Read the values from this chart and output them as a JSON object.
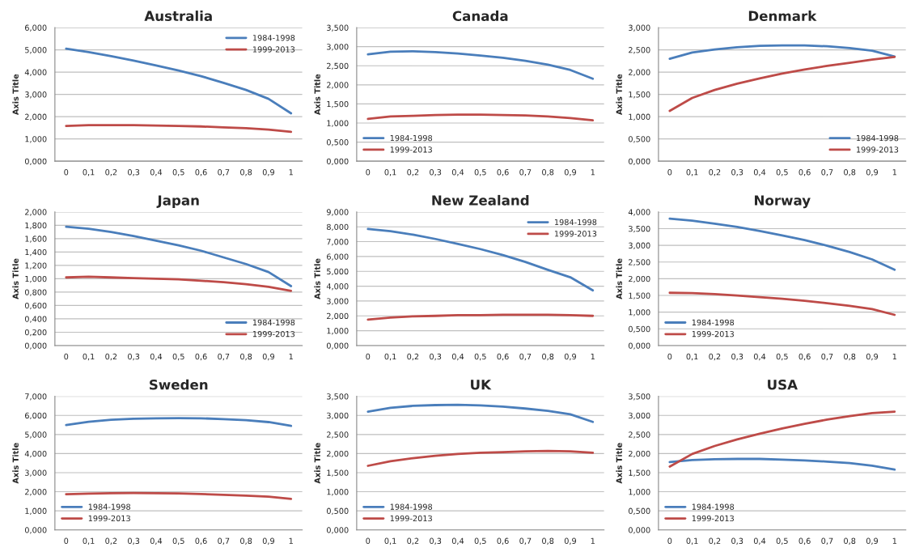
{
  "chart_data": [
    {
      "type": "line",
      "title": "Australia",
      "ylabel": "Axis Title",
      "categories": [
        "0",
        "0,1",
        "0,2",
        "0,3",
        "0,4",
        "0,5",
        "0,6",
        "0,7",
        "0,8",
        "0,9",
        "1"
      ],
      "ylim": [
        0,
        6
      ],
      "yticks": [
        {
          "value": 0,
          "label": "0,000"
        },
        {
          "value": 1,
          "label": "1,000"
        },
        {
          "value": 2,
          "label": "2,000"
        },
        {
          "value": 3,
          "label": "3,000"
        },
        {
          "value": 4,
          "label": "4,000"
        },
        {
          "value": 5,
          "label": "5,000"
        },
        {
          "value": 6,
          "label": "6,000"
        }
      ],
      "grid": "y",
      "legend": "top right",
      "series": [
        {
          "name": "1984-1998",
          "color": "#4a7ebb",
          "values": [
            5.05,
            4.9,
            4.72,
            4.52,
            4.3,
            4.07,
            3.82,
            3.52,
            3.2,
            2.8,
            2.15
          ]
        },
        {
          "name": "1999-2013",
          "color": "#be4b48",
          "values": [
            1.58,
            1.62,
            1.62,
            1.62,
            1.6,
            1.58,
            1.56,
            1.52,
            1.48,
            1.42,
            1.32
          ]
        }
      ]
    },
    {
      "type": "line",
      "title": "Canada",
      "ylabel": "Axis Title",
      "categories": [
        "0",
        "0,1",
        "0,2",
        "0,3",
        "0,4",
        "0,5",
        "0,6",
        "0,7",
        "0,8",
        "0,9",
        "1"
      ],
      "ylim": [
        0,
        3.5
      ],
      "yticks": [
        {
          "value": 0,
          "label": "0,000"
        },
        {
          "value": 0.5,
          "label": "0,500"
        },
        {
          "value": 1,
          "label": "1,000"
        },
        {
          "value": 1.5,
          "label": "1,500"
        },
        {
          "value": 2,
          "label": "2,000"
        },
        {
          "value": 2.5,
          "label": "2,500"
        },
        {
          "value": 3,
          "label": "3,000"
        },
        {
          "value": 3.5,
          "label": "3,500"
        }
      ],
      "grid": "y",
      "legend": "bottom left",
      "series": [
        {
          "name": "1984-1998",
          "color": "#4a7ebb",
          "values": [
            2.8,
            2.87,
            2.88,
            2.86,
            2.82,
            2.77,
            2.71,
            2.63,
            2.53,
            2.39,
            2.16
          ]
        },
        {
          "name": "1999-2013",
          "color": "#be4b48",
          "values": [
            1.11,
            1.17,
            1.19,
            1.21,
            1.22,
            1.22,
            1.21,
            1.2,
            1.17,
            1.13,
            1.07
          ]
        }
      ]
    },
    {
      "type": "line",
      "title": "Denmark",
      "ylabel": "Axis Title",
      "categories": [
        "0",
        "0,1",
        "0,2",
        "0,3",
        "0,4",
        "0,5",
        "0,6",
        "0,7",
        "0,8",
        "0,9",
        "1"
      ],
      "ylim": [
        0,
        3
      ],
      "yticks": [
        {
          "value": 0,
          "label": "0,000"
        },
        {
          "value": 0.5,
          "label": "0,500"
        },
        {
          "value": 1,
          "label": "1,000"
        },
        {
          "value": 1.5,
          "label": "1,500"
        },
        {
          "value": 2,
          "label": "2,000"
        },
        {
          "value": 2.5,
          "label": "2,500"
        },
        {
          "value": 3,
          "label": "3,000"
        }
      ],
      "grid": "y",
      "legend": "bottom right",
      "series": [
        {
          "name": "1984-1998",
          "color": "#4a7ebb",
          "values": [
            2.3,
            2.44,
            2.51,
            2.56,
            2.59,
            2.6,
            2.6,
            2.58,
            2.54,
            2.48,
            2.35
          ]
        },
        {
          "name": "1999-2013",
          "color": "#be4b48",
          "values": [
            1.13,
            1.42,
            1.6,
            1.74,
            1.86,
            1.97,
            2.06,
            2.14,
            2.21,
            2.28,
            2.34
          ]
        }
      ]
    },
    {
      "type": "line",
      "title": "Japan",
      "ylabel": "Axis Title",
      "categories": [
        "0",
        "0,1",
        "0,2",
        "0,3",
        "0,4",
        "0,5",
        "0,6",
        "0,7",
        "0,8",
        "0,9",
        "1"
      ],
      "ylim": [
        0,
        2
      ],
      "yticks": [
        {
          "value": 0,
          "label": "0,000"
        },
        {
          "value": 0.2,
          "label": "0,200"
        },
        {
          "value": 0.4,
          "label": "0,400"
        },
        {
          "value": 0.6,
          "label": "0,600"
        },
        {
          "value": 0.8,
          "label": "0,800"
        },
        {
          "value": 1,
          "label": "1,000"
        },
        {
          "value": 1.2,
          "label": "1,200"
        },
        {
          "value": 1.4,
          "label": "1,400"
        },
        {
          "value": 1.6,
          "label": "1,600"
        },
        {
          "value": 1.8,
          "label": "1,800"
        },
        {
          "value": 2,
          "label": "2,000"
        }
      ],
      "grid": "y",
      "legend": "bottom right",
      "series": [
        {
          "name": "1984-1998",
          "color": "#4a7ebb",
          "values": [
            1.78,
            1.75,
            1.7,
            1.64,
            1.57,
            1.5,
            1.42,
            1.32,
            1.22,
            1.1,
            0.89
          ]
        },
        {
          "name": "1999-2013",
          "color": "#be4b48",
          "values": [
            1.02,
            1.03,
            1.02,
            1.01,
            1.0,
            0.99,
            0.97,
            0.95,
            0.92,
            0.88,
            0.82
          ]
        }
      ]
    },
    {
      "type": "line",
      "title": "New Zealand",
      "ylabel": "Axis Title",
      "categories": [
        "0",
        "0,1",
        "0,2",
        "0,3",
        "0,4",
        "0,5",
        "0,6",
        "0,7",
        "0,8",
        "0,9",
        "1"
      ],
      "ylim": [
        0,
        9
      ],
      "yticks": [
        {
          "value": 0,
          "label": "0,000"
        },
        {
          "value": 1,
          "label": "1,000"
        },
        {
          "value": 2,
          "label": "2,000"
        },
        {
          "value": 3,
          "label": "3,000"
        },
        {
          "value": 4,
          "label": "4,000"
        },
        {
          "value": 5,
          "label": "5,000"
        },
        {
          "value": 6,
          "label": "6,000"
        },
        {
          "value": 7,
          "label": "7,000"
        },
        {
          "value": 8,
          "label": "8,000"
        },
        {
          "value": 9,
          "label": "9,000"
        }
      ],
      "grid": "y",
      "legend": "top right",
      "series": [
        {
          "name": "1984-1998",
          "color": "#4a7ebb",
          "values": [
            7.85,
            7.7,
            7.47,
            7.18,
            6.85,
            6.5,
            6.1,
            5.63,
            5.1,
            4.6,
            3.72
          ]
        },
        {
          "name": "1999-2013",
          "color": "#be4b48",
          "values": [
            1.75,
            1.88,
            1.97,
            2.0,
            2.05,
            2.05,
            2.07,
            2.07,
            2.07,
            2.05,
            2.0
          ]
        }
      ]
    },
    {
      "type": "line",
      "title": "Norway",
      "ylabel": "Axis Title",
      "categories": [
        "0",
        "0,1",
        "0,2",
        "0,3",
        "0,4",
        "0,5",
        "0,6",
        "0,7",
        "0,8",
        "0,9",
        "1"
      ],
      "ylim": [
        0,
        4
      ],
      "yticks": [
        {
          "value": 0,
          "label": "0,000"
        },
        {
          "value": 0.5,
          "label": "0,500"
        },
        {
          "value": 1,
          "label": "1,000"
        },
        {
          "value": 1.5,
          "label": "1,500"
        },
        {
          "value": 2,
          "label": "2,000"
        },
        {
          "value": 2.5,
          "label": "2,500"
        },
        {
          "value": 3,
          "label": "3,000"
        },
        {
          "value": 3.5,
          "label": "3,500"
        },
        {
          "value": 4,
          "label": "4,000"
        }
      ],
      "grid": "y",
      "legend": "bottom left",
      "series": [
        {
          "name": "1984-1998",
          "color": "#4a7ebb",
          "values": [
            3.8,
            3.74,
            3.65,
            3.55,
            3.43,
            3.3,
            3.16,
            2.99,
            2.8,
            2.58,
            2.27
          ]
        },
        {
          "name": "1999-2013",
          "color": "#be4b48",
          "values": [
            1.58,
            1.57,
            1.54,
            1.5,
            1.45,
            1.4,
            1.34,
            1.27,
            1.19,
            1.09,
            0.92
          ]
        }
      ]
    },
    {
      "type": "line",
      "title": "Sweden",
      "ylabel": "Axis Title",
      "categories": [
        "0",
        "0,1",
        "0,2",
        "0,3",
        "0,4",
        "0,5",
        "0,6",
        "0,7",
        "0,8",
        "0,9",
        "1"
      ],
      "ylim": [
        0,
        7
      ],
      "yticks": [
        {
          "value": 0,
          "label": "0,000"
        },
        {
          "value": 1,
          "label": "1,000"
        },
        {
          "value": 2,
          "label": "2,000"
        },
        {
          "value": 3,
          "label": "3,000"
        },
        {
          "value": 4,
          "label": "4,000"
        },
        {
          "value": 5,
          "label": "5,000"
        },
        {
          "value": 6,
          "label": "6,000"
        },
        {
          "value": 7,
          "label": "7,000"
        }
      ],
      "grid": "y",
      "legend": "bottom left",
      "series": [
        {
          "name": "1984-1998",
          "color": "#4a7ebb",
          "values": [
            5.5,
            5.67,
            5.77,
            5.82,
            5.85,
            5.86,
            5.85,
            5.8,
            5.75,
            5.65,
            5.45
          ]
        },
        {
          "name": "1999-2013",
          "color": "#be4b48",
          "values": [
            1.87,
            1.9,
            1.92,
            1.93,
            1.92,
            1.91,
            1.88,
            1.84,
            1.8,
            1.74,
            1.63
          ]
        }
      ]
    },
    {
      "type": "line",
      "title": "UK",
      "ylabel": "Axis Title",
      "categories": [
        "0",
        "0,1",
        "0,2",
        "0,3",
        "0,4",
        "0,5",
        "0,6",
        "0,7",
        "0,8",
        "0,9",
        "1"
      ],
      "ylim": [
        0,
        3.5
      ],
      "yticks": [
        {
          "value": 0,
          "label": "0,000"
        },
        {
          "value": 0.5,
          "label": "0,500"
        },
        {
          "value": 1,
          "label": "1,000"
        },
        {
          "value": 1.5,
          "label": "1,500"
        },
        {
          "value": 2,
          "label": "2,000"
        },
        {
          "value": 2.5,
          "label": "2,500"
        },
        {
          "value": 3,
          "label": "3,000"
        },
        {
          "value": 3.5,
          "label": "3,500"
        }
      ],
      "grid": "y",
      "legend": "bottom left",
      "series": [
        {
          "name": "1984-1998",
          "color": "#4a7ebb",
          "values": [
            3.1,
            3.2,
            3.25,
            3.27,
            3.28,
            3.26,
            3.23,
            3.18,
            3.12,
            3.03,
            2.83
          ]
        },
        {
          "name": "1999-2013",
          "color": "#be4b48",
          "values": [
            1.68,
            1.8,
            1.88,
            1.94,
            1.99,
            2.02,
            2.04,
            2.06,
            2.07,
            2.06,
            2.02
          ]
        }
      ]
    },
    {
      "type": "line",
      "title": "USA",
      "ylabel": "Axis Title",
      "categories": [
        "0",
        "0,1",
        "0,2",
        "0,3",
        "0,4",
        "0,5",
        "0,6",
        "0,7",
        "0,8",
        "0,9",
        "1"
      ],
      "ylim": [
        0,
        3.5
      ],
      "yticks": [
        {
          "value": 0,
          "label": "0,000"
        },
        {
          "value": 0.5,
          "label": "0,500"
        },
        {
          "value": 1,
          "label": "1,000"
        },
        {
          "value": 1.5,
          "label": "1,500"
        },
        {
          "value": 2,
          "label": "2,000"
        },
        {
          "value": 2.5,
          "label": "2,500"
        },
        {
          "value": 3,
          "label": "3,000"
        },
        {
          "value": 3.5,
          "label": "3,500"
        }
      ],
      "grid": "y",
      "legend": "bottom left",
      "series": [
        {
          "name": "1984-1998",
          "color": "#4a7ebb",
          "values": [
            1.78,
            1.83,
            1.85,
            1.86,
            1.86,
            1.84,
            1.82,
            1.79,
            1.75,
            1.68,
            1.58
          ]
        },
        {
          "name": "1999-2013",
          "color": "#be4b48",
          "values": [
            1.66,
            1.99,
            2.2,
            2.37,
            2.52,
            2.66,
            2.78,
            2.89,
            2.98,
            3.06,
            3.1
          ]
        }
      ]
    }
  ]
}
